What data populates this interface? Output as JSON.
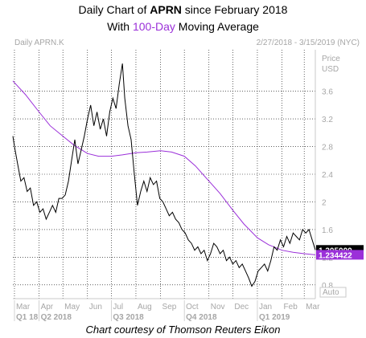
{
  "title": {
    "line1_prefix": "Daily Chart of ",
    "line1_ticker": "APRN",
    "line1_suffix": " since February 2018",
    "line2_prefix": "With ",
    "line2_highlight": "100-Day",
    "line2_suffix": " Moving Average"
  },
  "header": {
    "symbol": "Daily APRN.K",
    "date_range": "2/27/2018 - 3/15/2019 (NYC)"
  },
  "footer": "Chart courtesy of Thomson Reuters Eikon",
  "colors": {
    "price": "#000000",
    "moving_average": "#9b30d9",
    "grid": "#000000",
    "axis_text": "#a6a6a6",
    "last_price_box": "#000000",
    "ma_box": "#9b30d9"
  },
  "chart_data": {
    "type": "line",
    "title": "Daily Chart of APRN since February 2018 With 100-Day Moving Average",
    "ylabel": "Price USD",
    "ylabel_line1": "Price",
    "ylabel_line2": "USD",
    "ylim": [
      0.6,
      4.2
    ],
    "yticks": [
      0.8,
      1.2,
      1.6,
      2,
      2.4,
      2.8,
      3.2,
      3.6
    ],
    "xlim": [
      "2018-02-27",
      "2019-03-15"
    ],
    "month_ticks": [
      {
        "label": "Mar",
        "date": "2018-03-01"
      },
      {
        "label": "Apr",
        "date": "2018-04-01"
      },
      {
        "label": "May",
        "date": "2018-05-01"
      },
      {
        "label": "Jun",
        "date": "2018-06-01"
      },
      {
        "label": "Jul",
        "date": "2018-07-01"
      },
      {
        "label": "Aug",
        "date": "2018-08-01"
      },
      {
        "label": "Sep",
        "date": "2018-09-01"
      },
      {
        "label": "Oct",
        "date": "2018-10-01"
      },
      {
        "label": "Nov",
        "date": "2018-11-01"
      },
      {
        "label": "Dec",
        "date": "2018-12-01"
      },
      {
        "label": "Jan",
        "date": "2019-01-01"
      },
      {
        "label": "Feb",
        "date": "2019-02-01"
      },
      {
        "label": "Mar",
        "date": "2019-03-01"
      }
    ],
    "quarter_ticks": [
      {
        "label": "Q1 18",
        "date": "2018-03-01"
      },
      {
        "label": "Q2 2018",
        "date": "2018-04-01"
      },
      {
        "label": "Q3 2018",
        "date": "2018-07-01"
      },
      {
        "label": "Q4 2018",
        "date": "2018-10-01"
      },
      {
        "label": "Q1 2019",
        "date": "2019-01-01"
      }
    ],
    "last_price": {
      "label": "1.305000",
      "value": 1.305
    },
    "last_ma": {
      "label": "1.234422",
      "value": 1.234422
    },
    "scale_mode": "Auto",
    "grid": true,
    "series": [
      {
        "name": "Price",
        "points": [
          [
            "2018-02-27",
            2.95
          ],
          [
            "2018-03-01",
            2.8
          ],
          [
            "2018-03-05",
            2.55
          ],
          [
            "2018-03-09",
            2.3
          ],
          [
            "2018-03-13",
            2.35
          ],
          [
            "2018-03-17",
            2.15
          ],
          [
            "2018-03-21",
            2.2
          ],
          [
            "2018-03-25",
            1.95
          ],
          [
            "2018-03-29",
            2.0
          ],
          [
            "2018-04-02",
            1.85
          ],
          [
            "2018-04-06",
            1.9
          ],
          [
            "2018-04-10",
            1.75
          ],
          [
            "2018-04-14",
            1.85
          ],
          [
            "2018-04-18",
            1.95
          ],
          [
            "2018-04-22",
            1.85
          ],
          [
            "2018-04-26",
            2.05
          ],
          [
            "2018-04-30",
            2.05
          ],
          [
            "2018-05-04",
            2.1
          ],
          [
            "2018-05-08",
            2.3
          ],
          [
            "2018-05-12",
            2.6
          ],
          [
            "2018-05-16",
            2.9
          ],
          [
            "2018-05-20",
            2.55
          ],
          [
            "2018-05-24",
            2.75
          ],
          [
            "2018-05-28",
            2.95
          ],
          [
            "2018-06-01",
            3.2
          ],
          [
            "2018-06-05",
            3.4
          ],
          [
            "2018-06-09",
            3.1
          ],
          [
            "2018-06-13",
            3.3
          ],
          [
            "2018-06-17",
            3.05
          ],
          [
            "2018-06-21",
            3.2
          ],
          [
            "2018-06-25",
            2.95
          ],
          [
            "2018-06-29",
            3.3
          ],
          [
            "2018-07-03",
            3.5
          ],
          [
            "2018-07-07",
            3.35
          ],
          [
            "2018-07-11",
            3.7
          ],
          [
            "2018-07-15",
            4.0
          ],
          [
            "2018-07-18",
            3.5
          ],
          [
            "2018-07-22",
            3.1
          ],
          [
            "2018-07-26",
            2.9
          ],
          [
            "2018-07-30",
            2.4
          ],
          [
            "2018-08-03",
            1.95
          ],
          [
            "2018-08-07",
            2.15
          ],
          [
            "2018-08-11",
            2.3
          ],
          [
            "2018-08-15",
            2.15
          ],
          [
            "2018-08-19",
            2.35
          ],
          [
            "2018-08-23",
            2.25
          ],
          [
            "2018-08-27",
            2.3
          ],
          [
            "2018-08-31",
            2.05
          ],
          [
            "2018-09-04",
            2.0
          ],
          [
            "2018-09-08",
            1.9
          ],
          [
            "2018-09-12",
            1.8
          ],
          [
            "2018-09-16",
            1.85
          ],
          [
            "2018-09-20",
            1.75
          ],
          [
            "2018-09-24",
            1.7
          ],
          [
            "2018-09-28",
            1.6
          ],
          [
            "2018-10-02",
            1.55
          ],
          [
            "2018-10-06",
            1.45
          ],
          [
            "2018-10-10",
            1.4
          ],
          [
            "2018-10-14",
            1.3
          ],
          [
            "2018-10-18",
            1.35
          ],
          [
            "2018-10-22",
            1.25
          ],
          [
            "2018-10-26",
            1.3
          ],
          [
            "2018-10-30",
            1.15
          ],
          [
            "2018-11-03",
            1.25
          ],
          [
            "2018-11-07",
            1.4
          ],
          [
            "2018-11-11",
            1.35
          ],
          [
            "2018-11-15",
            1.25
          ],
          [
            "2018-11-19",
            1.3
          ],
          [
            "2018-11-23",
            1.15
          ],
          [
            "2018-11-27",
            1.2
          ],
          [
            "2018-12-01",
            1.1
          ],
          [
            "2018-12-05",
            1.15
          ],
          [
            "2018-12-09",
            1.05
          ],
          [
            "2018-12-13",
            1.1
          ],
          [
            "2018-12-17",
            1.0
          ],
          [
            "2018-12-21",
            0.9
          ],
          [
            "2018-12-25",
            0.78
          ],
          [
            "2018-12-29",
            0.85
          ],
          [
            "2019-01-02",
            1.0
          ],
          [
            "2019-01-06",
            1.05
          ],
          [
            "2019-01-10",
            1.1
          ],
          [
            "2019-01-14",
            1.0
          ],
          [
            "2019-01-18",
            1.15
          ],
          [
            "2019-01-22",
            1.35
          ],
          [
            "2019-01-26",
            1.3
          ],
          [
            "2019-01-30",
            1.45
          ],
          [
            "2019-02-03",
            1.35
          ],
          [
            "2019-02-07",
            1.5
          ],
          [
            "2019-02-11",
            1.4
          ],
          [
            "2019-02-15",
            1.55
          ],
          [
            "2019-02-19",
            1.5
          ],
          [
            "2019-02-23",
            1.45
          ],
          [
            "2019-02-27",
            1.6
          ],
          [
            "2019-03-03",
            1.55
          ],
          [
            "2019-03-07",
            1.6
          ],
          [
            "2019-03-11",
            1.45
          ],
          [
            "2019-03-15",
            1.305
          ]
        ]
      },
      {
        "name": "100-Day Moving Average",
        "points": [
          [
            "2018-02-27",
            3.75
          ],
          [
            "2018-03-15",
            3.55
          ],
          [
            "2018-04-01",
            3.3
          ],
          [
            "2018-04-15",
            3.1
          ],
          [
            "2018-05-01",
            2.95
          ],
          [
            "2018-05-15",
            2.82
          ],
          [
            "2018-06-01",
            2.7
          ],
          [
            "2018-06-15",
            2.66
          ],
          [
            "2018-07-01",
            2.66
          ],
          [
            "2018-07-15",
            2.68
          ],
          [
            "2018-08-01",
            2.71
          ],
          [
            "2018-08-15",
            2.72
          ],
          [
            "2018-09-01",
            2.74
          ],
          [
            "2018-09-15",
            2.72
          ],
          [
            "2018-10-01",
            2.66
          ],
          [
            "2018-10-15",
            2.52
          ],
          [
            "2018-11-01",
            2.3
          ],
          [
            "2018-11-15",
            2.12
          ],
          [
            "2018-12-01",
            1.88
          ],
          [
            "2018-12-15",
            1.68
          ],
          [
            "2019-01-01",
            1.48
          ],
          [
            "2019-01-15",
            1.38
          ],
          [
            "2019-02-01",
            1.3
          ],
          [
            "2019-02-15",
            1.27
          ],
          [
            "2019-03-01",
            1.25
          ],
          [
            "2019-03-15",
            1.234
          ]
        ]
      }
    ]
  }
}
